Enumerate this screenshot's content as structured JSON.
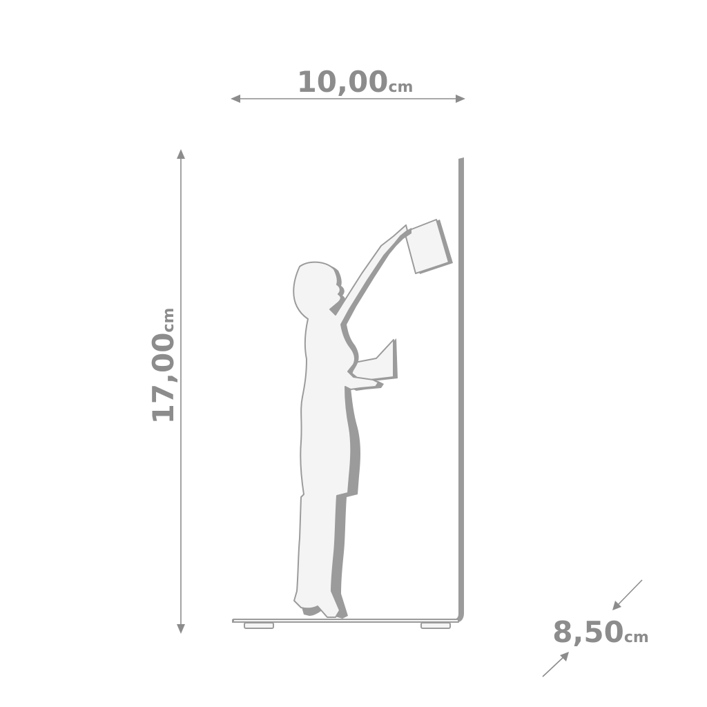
{
  "dimensions": {
    "width": {
      "value": "10,00",
      "unit": "cm"
    },
    "height": {
      "value": "17,00",
      "unit": "cm"
    },
    "depth": {
      "value": "8,50",
      "unit": "cm"
    }
  },
  "colors": {
    "dimension": "#8c8c8c",
    "figure_fill": "#f4f4f4",
    "figure_outline": "#9b9b9b"
  }
}
